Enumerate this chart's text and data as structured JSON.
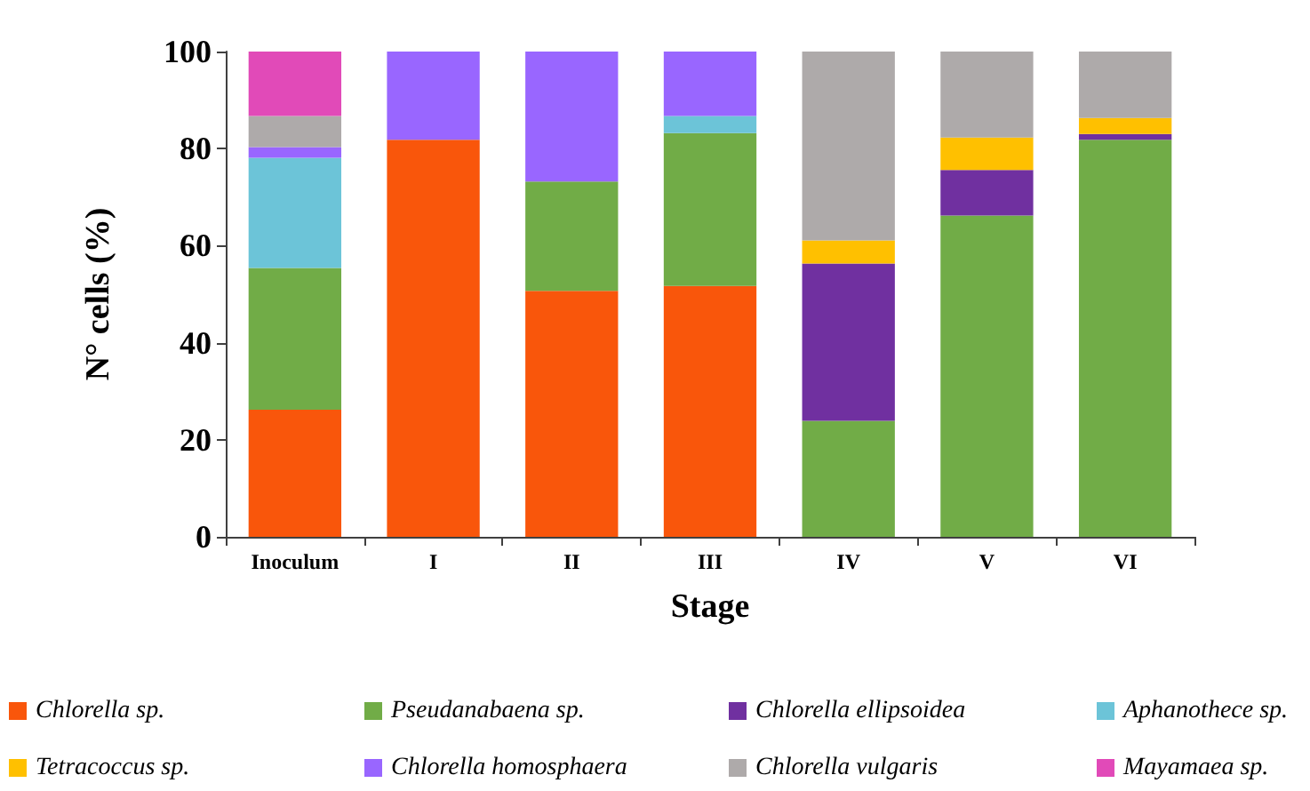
{
  "chart_data": {
    "type": "bar",
    "stacked": true,
    "xlabel": "Stage",
    "ylabel": "N° cells (%)",
    "categories": [
      "Inoculum",
      "I",
      "II",
      "III",
      "IV",
      "V",
      "VI"
    ],
    "series": [
      {
        "name": "Chlorella sp.",
        "color": "#f9560b",
        "values": [
          26.2,
          81.8,
          50.7,
          51.7,
          0,
          0,
          0
        ]
      },
      {
        "name": "Pseudanabaena sp.",
        "color": "#71ac47",
        "values": [
          29.2,
          0,
          22.5,
          31.5,
          23.9,
          66.2,
          81.8
        ]
      },
      {
        "name": "Chlorella ellipsoidea",
        "color": "#7030a0",
        "values": [
          0,
          0,
          0,
          0,
          32.4,
          9.4,
          1.2
        ]
      },
      {
        "name": "Aphanothece sp.",
        "color": "#6cc4d8",
        "values": [
          22.7,
          0,
          0,
          3.5,
          0,
          0,
          0
        ]
      },
      {
        "name": "Tetracoccus sp.",
        "color": "#ffc000",
        "values": [
          0,
          0,
          0,
          0,
          4.8,
          6.7,
          3.3
        ]
      },
      {
        "name": "Chlorella homosphaera",
        "color": "#9966ff",
        "values": [
          2.2,
          18.2,
          26.8,
          13.3,
          0,
          0,
          0
        ]
      },
      {
        "name": "Chlorella vulgaris",
        "color": "#aeaaaa",
        "values": [
          6.4,
          0,
          0,
          0,
          38.9,
          17.7,
          13.7
        ]
      },
      {
        "name": "Mayamaea sp.",
        "color": "#e14ab8",
        "values": [
          13.3,
          0,
          0,
          0,
          0,
          0,
          0
        ]
      }
    ],
    "ylim": [
      0,
      100
    ],
    "yticks": [
      0,
      20,
      40,
      60,
      80,
      100
    ],
    "grid": false,
    "legend": "bottom"
  }
}
